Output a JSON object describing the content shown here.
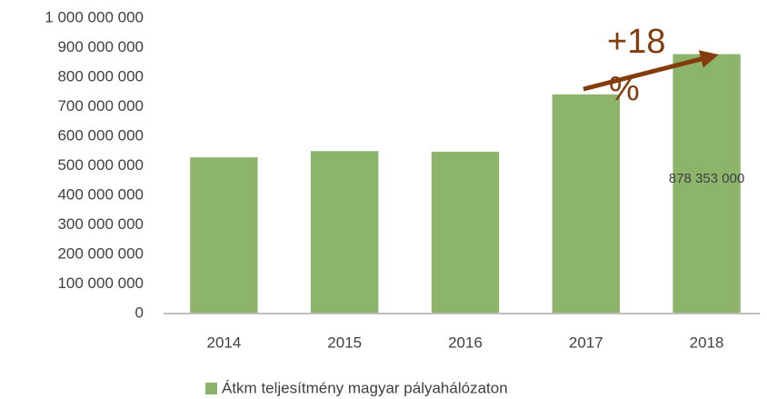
{
  "chart_data": {
    "type": "bar",
    "categories": [
      "2014",
      "2015",
      "2016",
      "2017",
      "2018"
    ],
    "series": [
      {
        "name": "Átkm teljesítmény magyar pályahálózaton",
        "color": "#8db46b",
        "values": [
          529000000,
          550000000,
          548000000,
          742000000,
          878353000
        ],
        "value_labels": [
          null,
          null,
          null,
          null,
          "878 353 000"
        ]
      }
    ],
    "ylim": [
      0,
      1000000000
    ],
    "yticks": [
      0,
      {
        "value": 100000000,
        "label": "100 000 000"
      },
      {
        "value": 200000000,
        "label": "200 000 000"
      },
      {
        "value": 300000000,
        "label": "300 000 000"
      },
      {
        "value": 400000000,
        "label": "400 000 000"
      },
      {
        "value": 500000000,
        "label": "500 000 000"
      },
      {
        "value": 600000000,
        "label": "600 000 000"
      },
      {
        "value": 700000000,
        "label": "700 000 000"
      },
      {
        "value": 800000000,
        "label": "800 000 000"
      },
      {
        "value": 900000000,
        "label": "900 000 000"
      },
      {
        "value": 1000000000,
        "label": "1 000 000 000"
      }
    ],
    "grid": false,
    "legend": "bottom",
    "annotation": {
      "lines": [
        "+18",
        "%"
      ],
      "color": "#843c0c"
    }
  }
}
